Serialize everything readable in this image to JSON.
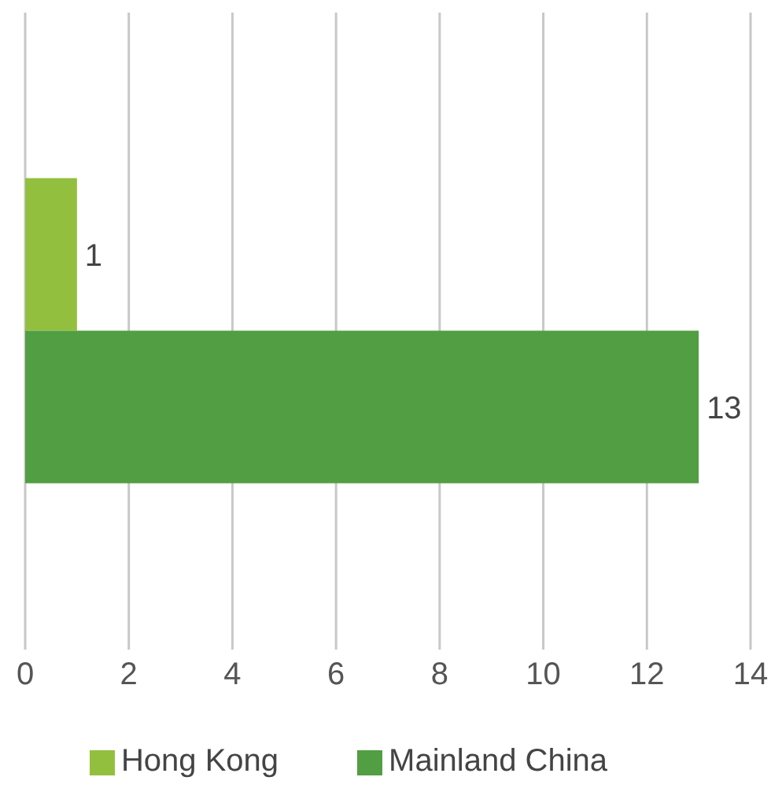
{
  "chart_data": {
    "type": "bar",
    "orientation": "horizontal",
    "categories": [
      null
    ],
    "series": [
      {
        "name": "Hong Kong",
        "color": "#93bf3e",
        "values": [
          1
        ]
      },
      {
        "name": "Mainland China",
        "color": "#519e43",
        "values": [
          13
        ]
      }
    ],
    "xlim": [
      0,
      14
    ],
    "xticks": [
      0,
      2,
      4,
      6,
      8,
      10,
      12,
      14
    ],
    "grid": "x",
    "legend": "bottom",
    "data_labels": true
  }
}
